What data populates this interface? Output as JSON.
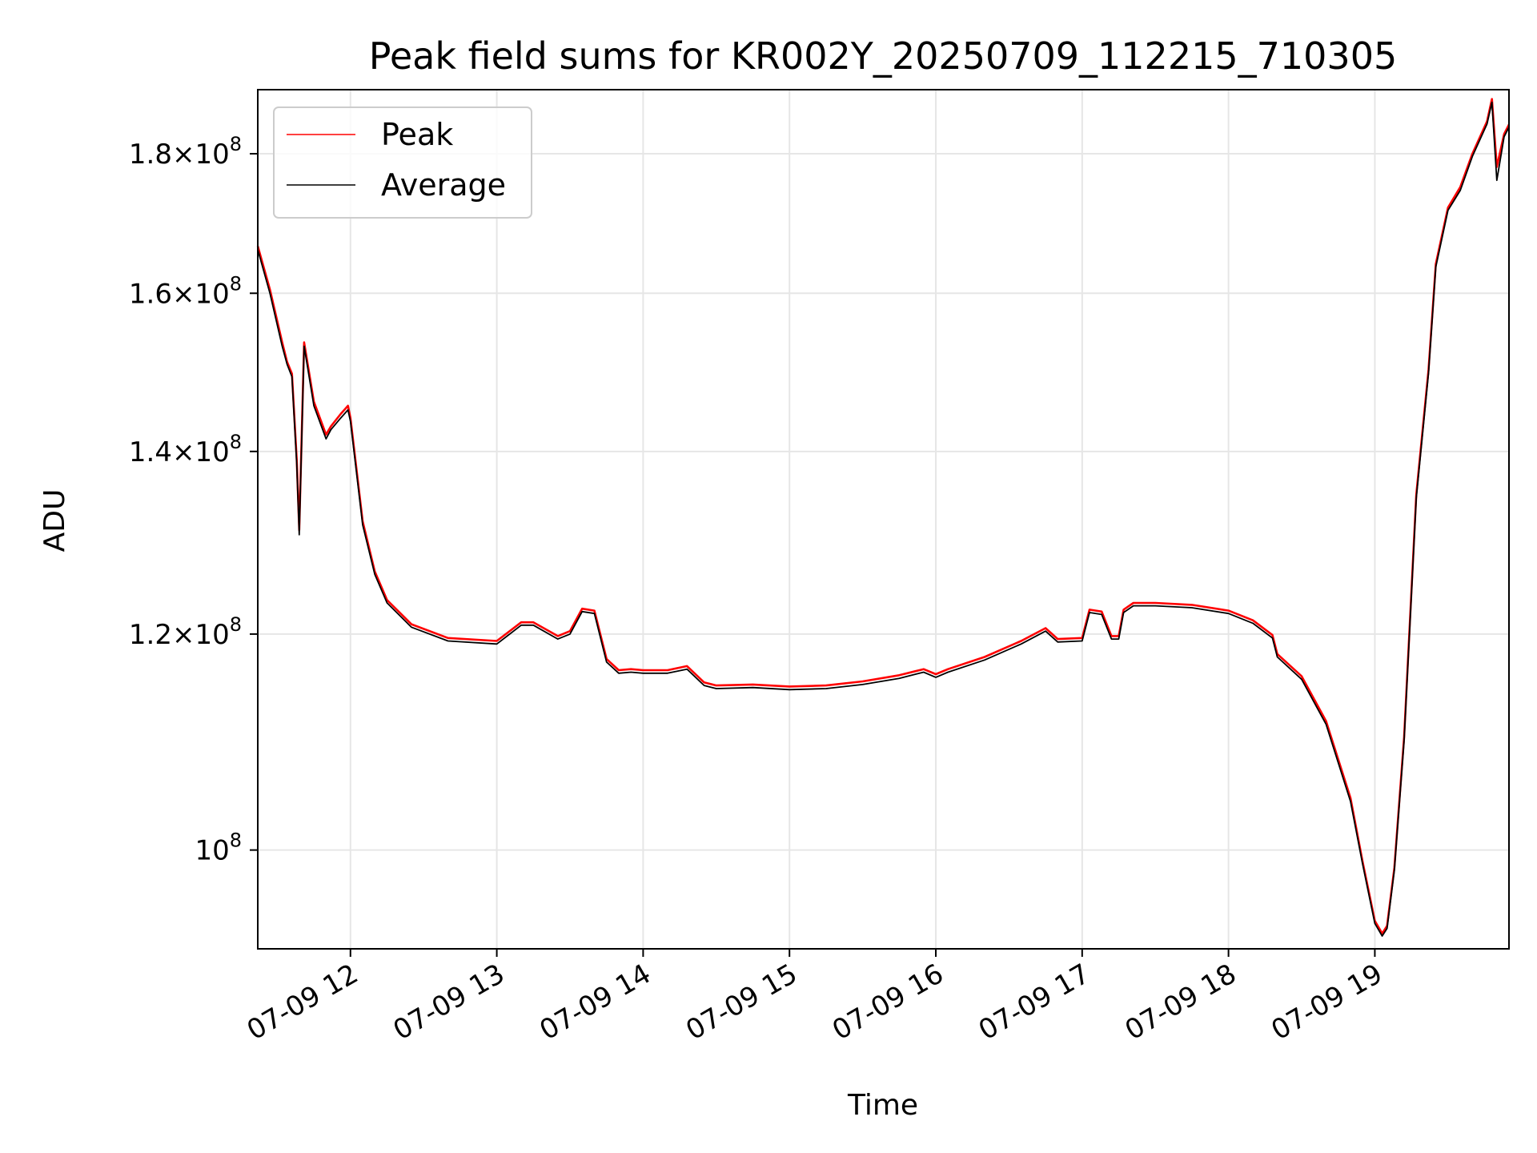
{
  "chart_data": {
    "type": "line",
    "title": "Peak field sums for KR002Y_20250709_112215_710305",
    "xlabel": "Time",
    "ylabel": "ADU",
    "y_scale": "log",
    "ylim": [
      92000000,
      190000000
    ],
    "xlim": [
      "2025-07-09 11:22",
      "2025-07-09 19:55"
    ],
    "x_ticks": [
      {
        "time": "2025-07-09 12:00",
        "label": "07-09 12"
      },
      {
        "time": "2025-07-09 13:00",
        "label": "07-09 13"
      },
      {
        "time": "2025-07-09 14:00",
        "label": "07-09 14"
      },
      {
        "time": "2025-07-09 15:00",
        "label": "07-09 15"
      },
      {
        "time": "2025-07-09 16:00",
        "label": "07-09 16"
      },
      {
        "time": "2025-07-09 17:00",
        "label": "07-09 17"
      },
      {
        "time": "2025-07-09 18:00",
        "label": "07-09 18"
      },
      {
        "time": "2025-07-09 19:00",
        "label": "07-09 19"
      }
    ],
    "y_ticks": [
      {
        "value": 100000000,
        "mantissa": "",
        "exp": "8"
      },
      {
        "value": 120000000,
        "mantissa": "1.2",
        "exp": "8"
      },
      {
        "value": 140000000,
        "mantissa": "1.4",
        "exp": "8"
      },
      {
        "value": 160000000,
        "mantissa": "1.6",
        "exp": "8"
      },
      {
        "value": 180000000,
        "mantissa": "1.8",
        "exp": "8"
      }
    ],
    "grid": true,
    "legend_position": "upper-left",
    "series": [
      {
        "name": "Peak",
        "color": "#ff0000",
        "x": [
          "2025-07-09 11:22",
          "2025-07-09 11:27",
          "2025-07-09 11:32",
          "2025-07-09 11:34",
          "2025-07-09 11:36",
          "2025-07-09 11:38",
          "2025-07-09 11:39",
          "2025-07-09 11:41",
          "2025-07-09 11:45",
          "2025-07-09 11:50",
          "2025-07-09 11:52",
          "2025-07-09 11:56",
          "2025-07-09 11:59",
          "2025-07-09 12:00",
          "2025-07-09 12:05",
          "2025-07-09 12:10",
          "2025-07-09 12:15",
          "2025-07-09 12:25",
          "2025-07-09 12:40",
          "2025-07-09 13:00",
          "2025-07-09 13:10",
          "2025-07-09 13:15",
          "2025-07-09 13:25",
          "2025-07-09 13:30",
          "2025-07-09 13:35",
          "2025-07-09 13:40",
          "2025-07-09 13:45",
          "2025-07-09 13:50",
          "2025-07-09 13:55",
          "2025-07-09 14:00",
          "2025-07-09 14:10",
          "2025-07-09 14:18",
          "2025-07-09 14:25",
          "2025-07-09 14:30",
          "2025-07-09 14:45",
          "2025-07-09 15:00",
          "2025-07-09 15:15",
          "2025-07-09 15:30",
          "2025-07-09 15:45",
          "2025-07-09 15:55",
          "2025-07-09 16:00",
          "2025-07-09 16:05",
          "2025-07-09 16:20",
          "2025-07-09 16:35",
          "2025-07-09 16:45",
          "2025-07-09 16:50",
          "2025-07-09 17:00",
          "2025-07-09 17:03",
          "2025-07-09 17:08",
          "2025-07-09 17:12",
          "2025-07-09 17:15",
          "2025-07-09 17:17",
          "2025-07-09 17:21",
          "2025-07-09 17:30",
          "2025-07-09 17:45",
          "2025-07-09 18:00",
          "2025-07-09 18:10",
          "2025-07-09 18:18",
          "2025-07-09 18:20",
          "2025-07-09 18:30",
          "2025-07-09 18:40",
          "2025-07-09 18:50",
          "2025-07-09 18:55",
          "2025-07-09 19:00",
          "2025-07-09 19:03",
          "2025-07-09 19:05",
          "2025-07-09 19:08",
          "2025-07-09 19:12",
          "2025-07-09 19:17",
          "2025-07-09 19:22",
          "2025-07-09 19:25",
          "2025-07-09 19:30",
          "2025-07-09 19:35",
          "2025-07-09 19:40",
          "2025-07-09 19:46",
          "2025-07-09 19:48",
          "2025-07-09 19:50",
          "2025-07-09 19:53",
          "2025-07-09 19:55"
        ],
        "values": [
          166500000,
          160500000,
          153500000,
          151000000,
          149500000,
          139000000,
          131000000,
          153500000,
          146000000,
          142000000,
          143000000,
          144500000,
          145500000,
          144000000,
          132000000,
          126500000,
          123500000,
          121000000,
          119600000,
          119300000,
          121200000,
          121200000,
          119800000,
          120300000,
          122600000,
          122400000,
          117500000,
          116400000,
          116500000,
          116400000,
          116400000,
          116800000,
          115200000,
          114900000,
          115000000,
          114800000,
          114900000,
          115300000,
          115900000,
          116500000,
          116000000,
          116500000,
          117700000,
          119300000,
          120600000,
          119500000,
          119600000,
          122500000,
          122300000,
          119800000,
          119800000,
          122500000,
          123200000,
          123200000,
          123000000,
          122400000,
          121400000,
          119900000,
          118000000,
          115800000,
          111500000,
          104500000,
          99000000,
          94200000,
          93200000,
          93800000,
          98500000,
          110000000,
          135000000,
          150000000,
          164000000,
          172000000,
          175000000,
          180000000,
          185000000,
          188500000,
          178000000,
          183000000,
          184500000
        ]
      },
      {
        "name": "Average",
        "color": "#000000",
        "x": [
          "2025-07-09 11:22",
          "2025-07-09 11:27",
          "2025-07-09 11:32",
          "2025-07-09 11:34",
          "2025-07-09 11:36",
          "2025-07-09 11:38",
          "2025-07-09 11:39",
          "2025-07-09 11:41",
          "2025-07-09 11:45",
          "2025-07-09 11:50",
          "2025-07-09 11:52",
          "2025-07-09 11:56",
          "2025-07-09 11:59",
          "2025-07-09 12:00",
          "2025-07-09 12:05",
          "2025-07-09 12:10",
          "2025-07-09 12:15",
          "2025-07-09 12:25",
          "2025-07-09 12:40",
          "2025-07-09 13:00",
          "2025-07-09 13:10",
          "2025-07-09 13:15",
          "2025-07-09 13:25",
          "2025-07-09 13:30",
          "2025-07-09 13:35",
          "2025-07-09 13:40",
          "2025-07-09 13:45",
          "2025-07-09 13:50",
          "2025-07-09 13:55",
          "2025-07-09 14:00",
          "2025-07-09 14:10",
          "2025-07-09 14:18",
          "2025-07-09 14:25",
          "2025-07-09 14:30",
          "2025-07-09 14:45",
          "2025-07-09 15:00",
          "2025-07-09 15:15",
          "2025-07-09 15:30",
          "2025-07-09 15:45",
          "2025-07-09 15:55",
          "2025-07-09 16:00",
          "2025-07-09 16:05",
          "2025-07-09 16:20",
          "2025-07-09 16:35",
          "2025-07-09 16:45",
          "2025-07-09 16:50",
          "2025-07-09 17:00",
          "2025-07-09 17:03",
          "2025-07-09 17:08",
          "2025-07-09 17:12",
          "2025-07-09 17:15",
          "2025-07-09 17:17",
          "2025-07-09 17:21",
          "2025-07-09 17:30",
          "2025-07-09 17:45",
          "2025-07-09 18:00",
          "2025-07-09 18:10",
          "2025-07-09 18:18",
          "2025-07-09 18:20",
          "2025-07-09 18:30",
          "2025-07-09 18:40",
          "2025-07-09 18:50",
          "2025-07-09 18:55",
          "2025-07-09 19:00",
          "2025-07-09 19:03",
          "2025-07-09 19:05",
          "2025-07-09 19:08",
          "2025-07-09 19:12",
          "2025-07-09 19:17",
          "2025-07-09 19:22",
          "2025-07-09 19:25",
          "2025-07-09 19:30",
          "2025-07-09 19:35",
          "2025-07-09 19:40",
          "2025-07-09 19:46",
          "2025-07-09 19:48",
          "2025-07-09 19:50",
          "2025-07-09 19:53",
          "2025-07-09 19:55"
        ],
        "values": [
          166000000,
          160000000,
          153000000,
          150700000,
          149100000,
          138500000,
          130500000,
          153000000,
          145500000,
          141500000,
          142600000,
          144000000,
          145000000,
          143600000,
          131600000,
          126200000,
          123200000,
          120700000,
          119300000,
          119000000,
          120900000,
          120900000,
          119500000,
          120000000,
          122300000,
          122100000,
          117200000,
          116100000,
          116200000,
          116100000,
          116100000,
          116500000,
          114900000,
          114600000,
          114700000,
          114500000,
          114600000,
          115000000,
          115600000,
          116200000,
          115700000,
          116200000,
          117400000,
          119000000,
          120300000,
          119200000,
          119300000,
          122200000,
          122000000,
          119500000,
          119500000,
          122200000,
          122900000,
          122900000,
          122700000,
          122100000,
          121100000,
          119600000,
          117700000,
          115500000,
          111200000,
          104200000,
          98800000,
          94000000,
          93000000,
          93600000,
          98300000,
          109700000,
          134600000,
          149600000,
          163600000,
          171600000,
          174500000,
          179600000,
          184600000,
          188000000,
          176000000,
          182600000,
          184100000
        ]
      }
    ]
  }
}
